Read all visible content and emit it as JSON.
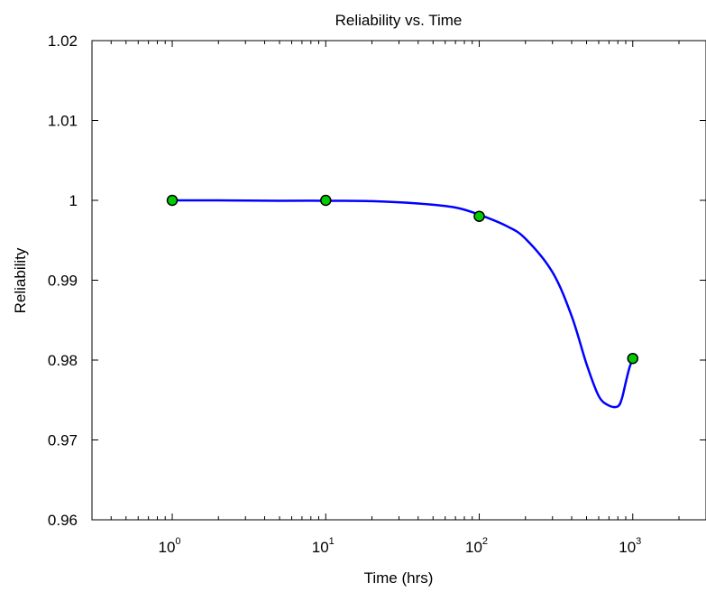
{
  "chart_data": {
    "type": "line",
    "title": "Reliability vs. Time",
    "xlabel": "Time (hrs)",
    "ylabel": "Reliability",
    "xscale": "log",
    "xlim": [
      0.3,
      3000
    ],
    "ylim": [
      0.96,
      1.02
    ],
    "grid": false,
    "legend": "none",
    "x_ticks": [
      {
        "base": "10",
        "exp": "0",
        "value": 1
      },
      {
        "base": "10",
        "exp": "1",
        "value": 10
      },
      {
        "base": "10",
        "exp": "2",
        "value": 100
      },
      {
        "base": "10",
        "exp": "3",
        "value": 1000
      }
    ],
    "y_ticks": [
      {
        "label": "0.96",
        "value": 0.96
      },
      {
        "label": "0.97",
        "value": 0.97
      },
      {
        "label": "0.98",
        "value": 0.98
      },
      {
        "label": "0.99",
        "value": 0.99
      },
      {
        "label": "1",
        "value": 1.0
      },
      {
        "label": "1.01",
        "value": 1.01
      },
      {
        "label": "1.02",
        "value": 1.02
      }
    ],
    "series": [
      {
        "type": "line",
        "color": "#0000ff",
        "x": [
          1,
          2,
          5,
          10,
          20,
          40,
          70,
          100,
          150,
          200,
          300,
          400,
          500,
          600,
          700,
          800,
          850,
          900,
          950,
          1000
        ],
        "y": [
          1.0,
          1.0,
          0.99995,
          0.99995,
          0.9999,
          0.9996,
          0.9991,
          0.9982,
          0.9968,
          0.9952,
          0.991,
          0.9855,
          0.9795,
          0.9755,
          0.9743,
          0.9742,
          0.9752,
          0.9772,
          0.979,
          0.9802
        ]
      },
      {
        "type": "scatter",
        "face_color": "#00cc00",
        "edge_color": "#000000",
        "x": [
          1,
          10,
          100,
          1000
        ],
        "y": [
          1.0,
          1.0,
          0.998,
          0.9802
        ]
      }
    ]
  }
}
